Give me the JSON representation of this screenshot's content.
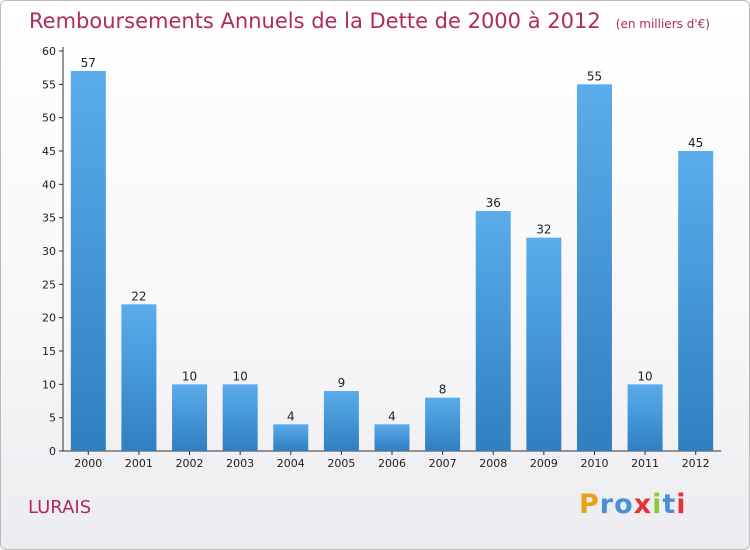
{
  "page": {
    "title": "Remboursements Annuels de la Dette de 2000 à 2012",
    "subtitle": "(en milliers d'€)",
    "commune": "LURAIS",
    "logo_text": "Proxiti",
    "logo_colors": [
      "#e8a21a",
      "#4a90d9",
      "#4a90d9",
      "#e0333c",
      "#8dc63f",
      "#4a90d9",
      "#e0333c"
    ]
  },
  "chart_data": {
    "type": "bar",
    "title": "Remboursements Annuels de la Dette de 2000 à 2012",
    "subtitle": "(en milliers d'€)",
    "categories": [
      "2000",
      "2001",
      "2002",
      "2003",
      "2004",
      "2005",
      "2006",
      "2007",
      "2008",
      "2009",
      "2010",
      "2011",
      "2012"
    ],
    "values": [
      57,
      22,
      10,
      10,
      4,
      9,
      4,
      8,
      36,
      32,
      55,
      10,
      45
    ],
    "ylim": [
      0,
      60
    ],
    "yticks": [
      0,
      5,
      10,
      15,
      20,
      25,
      30,
      35,
      40,
      45,
      50,
      55,
      60
    ],
    "grid": false,
    "legend": "none",
    "bar_color_top": "#5aaceb",
    "bar_color_bottom": "#2f7fc1"
  }
}
